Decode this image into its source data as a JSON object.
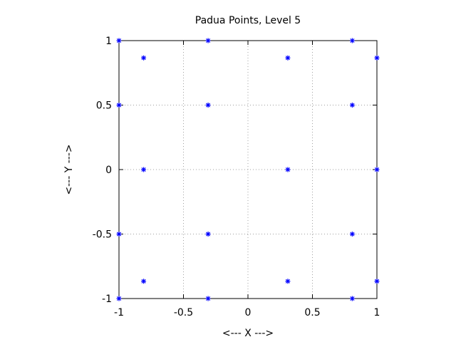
{
  "chart_data": {
    "type": "scatter",
    "title": "Padua Points, Level  5",
    "xlabel": "<--- X --->",
    "ylabel": "<--- Y --->",
    "xlim": [
      -1,
      1
    ],
    "ylim": [
      -1,
      1
    ],
    "xticks": [
      "-1",
      "-0.5",
      "0",
      "0.5",
      "1"
    ],
    "yticks": [
      "-1",
      "-0.5",
      "0",
      "0.5",
      "1"
    ],
    "grid": true,
    "marker_color": "#0000ff",
    "marker": "asterisk",
    "points": [
      [
        -1,
        1
      ],
      [
        -1,
        0.5
      ],
      [
        -1,
        -0.5
      ],
      [
        -1,
        -1
      ],
      [
        -0.809,
        0.866
      ],
      [
        -0.809,
        0
      ],
      [
        -0.809,
        -0.866
      ],
      [
        -0.309,
        1
      ],
      [
        -0.309,
        0.5
      ],
      [
        -0.309,
        -0.5
      ],
      [
        -0.309,
        -1
      ],
      [
        0.309,
        0.866
      ],
      [
        0.309,
        0
      ],
      [
        0.309,
        -0.866
      ],
      [
        0.809,
        1
      ],
      [
        0.809,
        0.5
      ],
      [
        0.809,
        -0.5
      ],
      [
        0.809,
        -1
      ],
      [
        1,
        0.866
      ],
      [
        1,
        0
      ],
      [
        1,
        -0.866
      ]
    ]
  }
}
